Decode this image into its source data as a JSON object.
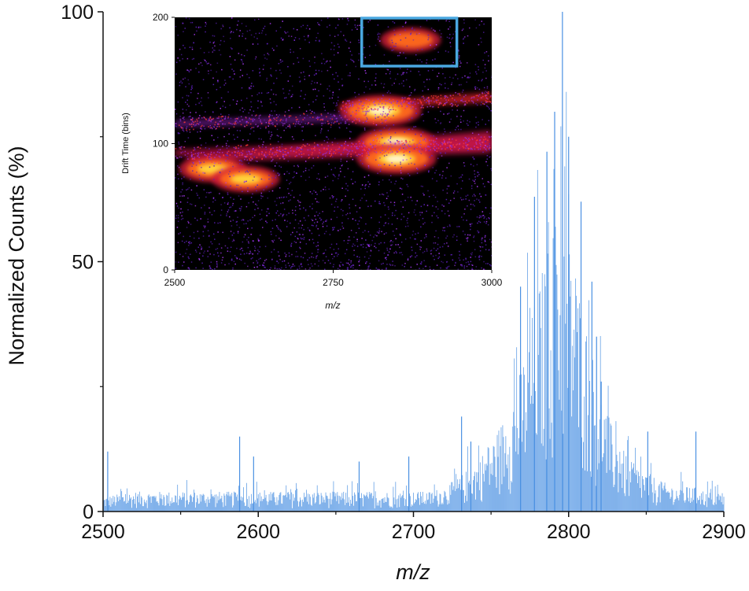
{
  "chart_data": [
    {
      "type": "bar",
      "role": "main",
      "xlabel": "m/z",
      "ylabel": "Normalized Counts (%)",
      "xlim": [
        2500,
        2900
      ],
      "ylim": [
        0,
        100
      ],
      "x_ticks": [
        2500,
        2600,
        2700,
        2800,
        2900
      ],
      "x_tick_labels": [
        "2500",
        "2600",
        "2700",
        "2800",
        "2900"
      ],
      "y_ticks": [
        0,
        50,
        100
      ],
      "y_tick_labels": [
        "0",
        "50",
        "100"
      ],
      "bar_color": "#4a90e2",
      "grid": false,
      "envelope": {
        "x": [
          2500,
          2520,
          2540,
          2560,
          2580,
          2600,
          2620,
          2640,
          2660,
          2680,
          2700,
          2710,
          2720,
          2730,
          2740,
          2750,
          2760,
          2770,
          2780,
          2790,
          2795,
          2800,
          2810,
          2820,
          2830,
          2840,
          2850,
          2860,
          2870,
          2880,
          2890,
          2900
        ],
        "y": [
          3,
          4,
          4,
          4,
          4,
          4,
          4,
          4,
          4,
          4,
          4,
          4,
          5,
          7,
          10,
          14,
          20,
          30,
          45,
          58,
          62,
          55,
          40,
          25,
          15,
          10,
          8,
          6,
          5,
          5,
          4,
          4
        ]
      },
      "peaks": [
        {
          "x": 2503,
          "y": 12
        },
        {
          "x": 2588,
          "y": 15
        },
        {
          "x": 2597,
          "y": 11
        },
        {
          "x": 2665,
          "y": 10
        },
        {
          "x": 2697,
          "y": 11
        },
        {
          "x": 2731,
          "y": 19
        },
        {
          "x": 2737,
          "y": 14
        },
        {
          "x": 2769,
          "y": 45
        },
        {
          "x": 2778,
          "y": 63
        },
        {
          "x": 2786,
          "y": 72
        },
        {
          "x": 2791,
          "y": 80
        },
        {
          "x": 2796,
          "y": 100
        },
        {
          "x": 2800,
          "y": 75
        },
        {
          "x": 2808,
          "y": 62
        },
        {
          "x": 2815,
          "y": 46
        },
        {
          "x": 2818,
          "y": 35
        },
        {
          "x": 2821,
          "y": 26
        },
        {
          "x": 2851,
          "y": 16
        },
        {
          "x": 2882,
          "y": 16
        }
      ]
    },
    {
      "type": "heatmap",
      "role": "inset",
      "xlabel": "m/z",
      "ylabel": "Drift Time (bins)",
      "xlim": [
        2500,
        3000
      ],
      "ylim": [
        0,
        200
      ],
      "x_ticks": [
        2500,
        2750,
        3000
      ],
      "x_tick_labels": [
        "2500",
        "2750",
        "3000"
      ],
      "y_ticks": [
        0,
        100,
        200
      ],
      "y_tick_labels": [
        "0",
        "100",
        "200"
      ],
      "colormap": "black-purple-red-yellow-white",
      "grid": false,
      "bands": [
        {
          "x": [
            2500,
            3000
          ],
          "y": [
            88,
            104
          ],
          "intensity": 0.55
        },
        {
          "x": [
            2520,
            3000
          ],
          "y": [
            72,
            110
          ],
          "intensity": 0.55
        },
        {
          "x": [
            2500,
            2840
          ],
          "y": [
            114,
            124
          ],
          "intensity": 0.25
        },
        {
          "x": [
            2760,
            3000
          ],
          "y": [
            125,
            140
          ],
          "intensity": 0.65
        }
      ],
      "hotspots": [
        {
          "x": 2825,
          "y": 126,
          "intensity": 1.0
        },
        {
          "x": 2850,
          "y": 101,
          "intensity": 0.95
        },
        {
          "x": 2850,
          "y": 88,
          "intensity": 0.95
        },
        {
          "x": 2560,
          "y": 80,
          "intensity": 0.7
        },
        {
          "x": 2612,
          "y": 72,
          "intensity": 0.7
        },
        {
          "x": 2872,
          "y": 182,
          "intensity": 0.55
        }
      ],
      "highlight_box": {
        "x": [
          2795,
          2945
        ],
        "y": [
          162,
          200
        ],
        "color": "#4aa8e0"
      }
    }
  ]
}
